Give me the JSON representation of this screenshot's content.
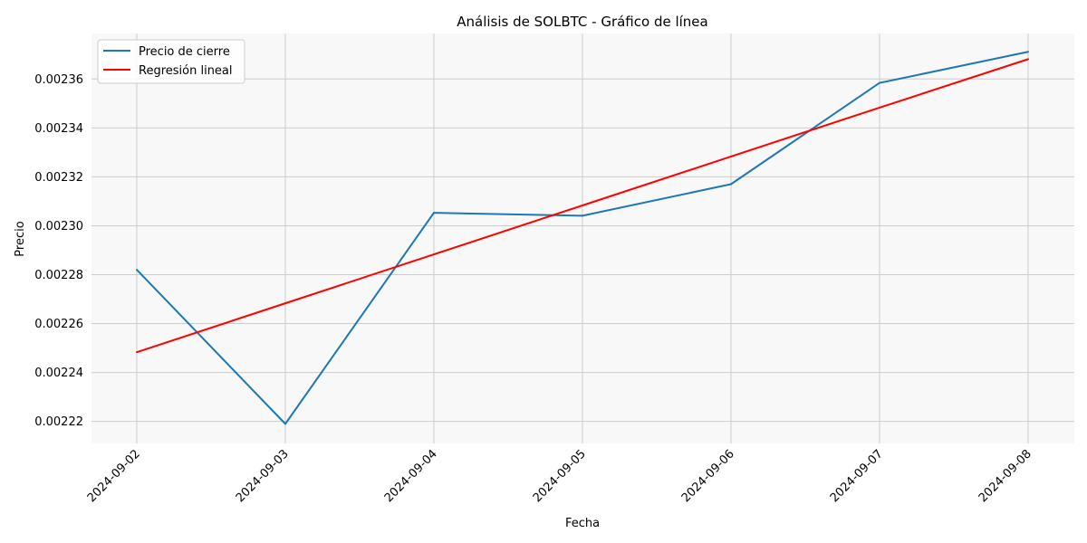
{
  "chart_data": {
    "type": "line",
    "title": "Análisis de SOLBTC - Gráfico de línea",
    "xlabel": "Fecha",
    "ylabel": "Precio",
    "x": [
      "2024-09-02",
      "2024-09-03",
      "2024-09-04",
      "2024-09-05",
      "2024-09-06",
      "2024-09-07",
      "2024-09-08"
    ],
    "series": [
      {
        "name": "Precio de cierre",
        "color": "#1f77b4",
        "values": [
          0.002282,
          0.002219,
          0.0023053,
          0.0023041,
          0.002317,
          0.0023584,
          0.0023711
        ]
      },
      {
        "name": "Regresión lineal",
        "color": "#ff0000",
        "values": [
          0.0022483,
          0.0022683,
          0.0022883,
          0.0023083,
          0.0023283,
          0.0023483,
          0.0023681
        ]
      }
    ],
    "yticks": [
      0.00222,
      0.00224,
      0.00226,
      0.00228,
      0.0023,
      0.00232,
      0.00234,
      0.00236
    ],
    "ytick_labels": [
      "0.00222",
      "0.00224",
      "0.00226",
      "0.00228",
      "0.00230",
      "0.00232",
      "0.00234",
      "0.00236"
    ],
    "ylim": [
      0.002211,
      0.0023786
    ],
    "grid": true,
    "legend_position": "top-left",
    "plot_background": "#f8f8f8",
    "grid_color": "#cccccc"
  }
}
